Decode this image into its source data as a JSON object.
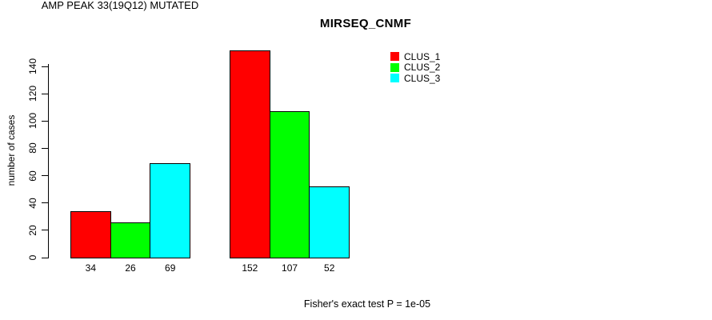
{
  "title": "MIRSEQ_CNMF",
  "chart_data": {
    "type": "bar",
    "title": "MIRSEQ_CNMF",
    "xlabel": "",
    "ylabel": "number of cases",
    "ylim": [
      0,
      140
    ],
    "yticks": [
      0,
      20,
      40,
      60,
      80,
      100,
      120,
      140
    ],
    "grid": false,
    "legend_position": "top-right",
    "categories": [
      "AMP PEAK 33(19Q12) MUTATED",
      ""
    ],
    "series": [
      {
        "name": "CLUS_1",
        "color": "#ff0000",
        "values": [
          34,
          152
        ]
      },
      {
        "name": "CLUS_2",
        "color": "#00ff00",
        "values": [
          26,
          107
        ]
      },
      {
        "name": "CLUS_3",
        "color": "#00ffff",
        "values": [
          69,
          52
        ]
      }
    ],
    "bar_value_labels": [
      [
        "34",
        "26",
        "69"
      ],
      [
        "152",
        "107",
        "52"
      ]
    ],
    "annotation": "Fisher's exact test P = 1e-05"
  },
  "legend": {
    "items": [
      {
        "label": "CLUS_1",
        "color": "#ff0000"
      },
      {
        "label": "CLUS_2",
        "color": "#00ff00"
      },
      {
        "label": "CLUS_3",
        "color": "#00ffff"
      }
    ]
  }
}
